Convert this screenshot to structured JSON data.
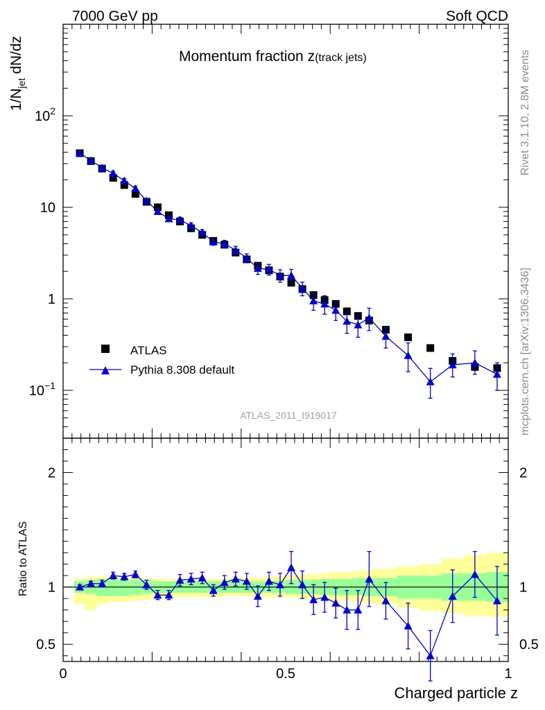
{
  "header": {
    "left": "7000 GeV pp",
    "right": "Soft QCD"
  },
  "side_labels": {
    "rivet": "Rivet 3.1.10,  2.8M events",
    "mcplots": "mcplots.cern.ch [arXiv:1306.3436]"
  },
  "analysis_id": "ATLAS_2011_I919017",
  "chart_data": [
    {
      "type": "scatter",
      "panel": "main",
      "title_main": "Momentum fraction z",
      "title_sub": "(track jets)",
      "ylabel_main": "1/N",
      "ylabel_sub": "jet",
      "ylabel_tail": " dN/dz",
      "yscale": "log",
      "ylim": [
        0.03,
        1000
      ],
      "xlim": [
        0,
        1
      ],
      "yticks": [
        {
          "value": 0.1,
          "base": "10",
          "exp": "−1"
        },
        {
          "value": 1,
          "base": "1",
          "exp": ""
        },
        {
          "value": 10,
          "base": "10",
          "exp": ""
        },
        {
          "value": 100,
          "base": "10",
          "exp": "2"
        }
      ],
      "legend": {
        "position": "left-bottom",
        "data_label": "ATLAS",
        "mc_label": "Pythia 8.308 default"
      },
      "x": [
        0.0375,
        0.0625,
        0.0875,
        0.1125,
        0.1375,
        0.1625,
        0.1875,
        0.2125,
        0.2375,
        0.2625,
        0.2875,
        0.3125,
        0.3375,
        0.3625,
        0.3875,
        0.4125,
        0.4375,
        0.4625,
        0.4875,
        0.5125,
        0.5375,
        0.5625,
        0.5875,
        0.6125,
        0.6375,
        0.6625,
        0.6875,
        0.725,
        0.775,
        0.825,
        0.875,
        0.925,
        0.975
      ],
      "series": [
        {
          "name": "ATLAS",
          "values": [
            39,
            32,
            26.5,
            21,
            17.5,
            14,
            11.5,
            10,
            8.2,
            7,
            5.9,
            5,
            4.3,
            3.9,
            3.2,
            2.7,
            2.3,
            2.05,
            1.75,
            1.5,
            1.28,
            1.1,
            0.97,
            0.88,
            0.73,
            0.65,
            0.58,
            0.46,
            0.38,
            0.29,
            0.21,
            0.18,
            0.175
          ]
        },
        {
          "name": "Pythia 8.308 default",
          "values": [
            39,
            32.5,
            27,
            23.5,
            19.5,
            16,
            11.8,
            9,
            7.5,
            7.3,
            6.3,
            5.3,
            4.2,
            4,
            3.4,
            2.8,
            2.15,
            2.1,
            1.8,
            1.8,
            1.3,
            0.95,
            0.88,
            0.75,
            0.57,
            0.52,
            0.62,
            0.39,
            0.24,
            0.124,
            0.19,
            0.2,
            0.15
          ],
          "err_up": [
            2,
            1.7,
            1.5,
            1.3,
            1.2,
            1,
            0.7,
            0.6,
            0.5,
            0.5,
            0.45,
            0.4,
            0.35,
            0.35,
            0.35,
            0.3,
            0.3,
            0.28,
            0.28,
            0.3,
            0.22,
            0.2,
            0.2,
            0.17,
            0.15,
            0.14,
            0.17,
            0.1,
            0.09,
            0.05,
            0.06,
            0.07,
            0.05
          ],
          "err_down": [
            2,
            1.7,
            1.5,
            1.3,
            1.2,
            1,
            0.7,
            0.6,
            0.5,
            0.5,
            0.45,
            0.4,
            0.35,
            0.35,
            0.35,
            0.3,
            0.3,
            0.28,
            0.28,
            0.3,
            0.22,
            0.2,
            0.2,
            0.17,
            0.15,
            0.14,
            0.17,
            0.1,
            0.08,
            0.042,
            0.05,
            0.05,
            0.05
          ]
        }
      ]
    },
    {
      "type": "line",
      "panel": "ratio",
      "ylabel": "Ratio to ATLAS",
      "xlabel": "Charged particle z",
      "ylim": [
        0.35,
        2.3
      ],
      "xlim": [
        0,
        1
      ],
      "xticks": [
        0,
        0.5,
        1
      ],
      "xtick_labels": [
        "0",
        "0.5",
        "1"
      ],
      "yticks": [
        0.5,
        1,
        2
      ],
      "ytick_labels": [
        "0.5",
        "1",
        "2"
      ],
      "band_edges": [
        0.025,
        0.05,
        0.075,
        0.1,
        0.125,
        0.15,
        0.175,
        0.2,
        0.225,
        0.25,
        0.275,
        0.3,
        0.325,
        0.35,
        0.375,
        0.4,
        0.425,
        0.45,
        0.475,
        0.5,
        0.525,
        0.55,
        0.575,
        0.6,
        0.625,
        0.65,
        0.675,
        0.7,
        0.75,
        0.8,
        0.85,
        0.9,
        0.95,
        1.0
      ],
      "band_inner_lo": [
        0.95,
        0.94,
        0.92,
        0.92,
        0.92,
        0.93,
        0.94,
        0.95,
        0.95,
        0.95,
        0.95,
        0.95,
        0.95,
        0.95,
        0.95,
        0.95,
        0.95,
        0.95,
        0.95,
        0.94,
        0.94,
        0.94,
        0.93,
        0.93,
        0.93,
        0.93,
        0.92,
        0.92,
        0.9,
        0.9,
        0.88,
        0.88,
        0.87
      ],
      "band_inner_hi": [
        1.05,
        1.06,
        1.07,
        1.07,
        1.06,
        1.06,
        1.06,
        1.05,
        1.05,
        1.05,
        1.05,
        1.05,
        1.05,
        1.05,
        1.05,
        1.05,
        1.05,
        1.05,
        1.05,
        1.06,
        1.06,
        1.06,
        1.07,
        1.07,
        1.07,
        1.08,
        1.08,
        1.08,
        1.1,
        1.1,
        1.12,
        1.12,
        1.13
      ],
      "band_outer_lo": [
        0.85,
        0.8,
        0.85,
        0.87,
        0.87,
        0.88,
        0.89,
        0.9,
        0.9,
        0.91,
        0.91,
        0.91,
        0.91,
        0.92,
        0.92,
        0.92,
        0.92,
        0.91,
        0.91,
        0.91,
        0.9,
        0.9,
        0.89,
        0.88,
        0.88,
        0.87,
        0.86,
        0.85,
        0.82,
        0.79,
        0.77,
        0.75,
        0.74
      ],
      "band_outer_hi": [
        1.07,
        1.09,
        1.09,
        1.09,
        1.08,
        1.08,
        1.07,
        1.07,
        1.07,
        1.07,
        1.07,
        1.07,
        1.07,
        1.07,
        1.08,
        1.08,
        1.08,
        1.09,
        1.09,
        1.1,
        1.11,
        1.11,
        1.12,
        1.13,
        1.13,
        1.14,
        1.15,
        1.16,
        1.18,
        1.2,
        1.25,
        1.28,
        1.3
      ],
      "series": [
        {
          "name": "Pythia 8.308 default / ATLAS",
          "values": [
            1.0,
            1.03,
            1.03,
            1.1,
            1.09,
            1.11,
            1.02,
            0.93,
            0.93,
            1.06,
            1.07,
            1.08,
            0.97,
            1.04,
            1.07,
            1.05,
            0.92,
            1.05,
            1.02,
            1.17,
            1.02,
            0.89,
            0.91,
            0.86,
            0.8,
            0.8,
            1.07,
            0.88,
            0.66,
            0.4,
            0.92,
            1.11,
            0.88
          ],
          "err": [
            0.02,
            0.02,
            0.03,
            0.03,
            0.03,
            0.03,
            0.04,
            0.04,
            0.04,
            0.05,
            0.05,
            0.05,
            0.05,
            0.06,
            0.06,
            0.07,
            0.09,
            0.08,
            0.1,
            0.14,
            0.12,
            0.13,
            0.13,
            0.13,
            0.17,
            0.17,
            0.24,
            0.16,
            0.2,
            0.22,
            0.23,
            0.2,
            0.3
          ]
        }
      ]
    }
  ]
}
